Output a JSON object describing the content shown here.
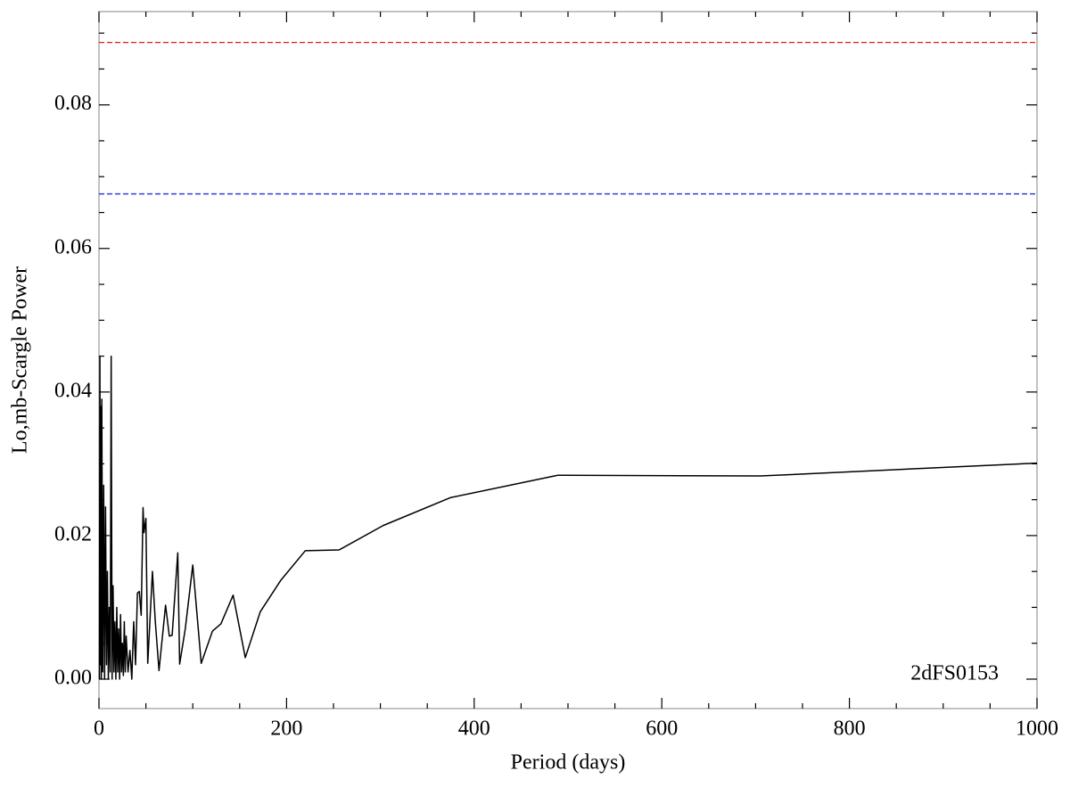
{
  "chart_data": {
    "type": "line",
    "x_label": "Period (days)",
    "y_label": "Lo,mb-Scargle Power",
    "annotation": "2dFS0153",
    "xlim": [
      0,
      1000
    ],
    "ylim": [
      -0.0041,
      0.093
    ],
    "xticks": [
      0,
      200,
      400,
      600,
      800,
      1000
    ],
    "x_minor_ticks": [
      50,
      100,
      150,
      250,
      300,
      350,
      450,
      500,
      550,
      650,
      700,
      750,
      850,
      900,
      950
    ],
    "yticks": [
      {
        "value": 0,
        "label": "0.00"
      },
      0.02,
      0.04,
      0.06,
      0.08
    ],
    "y_minor_ticks": [
      0.005,
      0.01,
      0.015,
      0.025,
      0.03,
      0.035,
      0.045,
      0.05,
      0.055,
      0.065,
      0.07,
      0.075,
      0.085,
      0.09
    ],
    "hlines": [
      {
        "value": 0.0887,
        "color": "#e41a1c"
      },
      {
        "value": 0.0676,
        "color": "#1f2fd0"
      }
    ],
    "series": [
      {
        "color": "#000000",
        "x": [
          0.5,
          1,
          1.5,
          2,
          2.5,
          3,
          4,
          5,
          6,
          7,
          8,
          9,
          10,
          11,
          12,
          13,
          14,
          15,
          16,
          17,
          18,
          19,
          20,
          21,
          22,
          23,
          24,
          25,
          26,
          27,
          28,
          29,
          31,
          33,
          35,
          37,
          39,
          41,
          43,
          45,
          47,
          48,
          50,
          52,
          57,
          60,
          64,
          71,
          75,
          78,
          84,
          86,
          92,
          100,
          109,
          121,
          130,
          143,
          156,
          172,
          194,
          220,
          256,
          303,
          375,
          489,
          705,
          1000
        ],
        "values": [
          0.0,
          0.045,
          0.002,
          0.038,
          0.0,
          0.039,
          0.001,
          0.027,
          0.0,
          0.024,
          0.002,
          0.015,
          0.0,
          0.01,
          0.001,
          0.045,
          0.0,
          0.013,
          0.001,
          0.008,
          0.0,
          0.01,
          0.001,
          0.007,
          0.0,
          0.009,
          0.001,
          0.005,
          0.0005,
          0.008,
          0.001,
          0.006,
          0.001,
          0.004,
          0.0,
          0.008,
          0.002,
          0.012,
          0.0122,
          0.0089,
          0.0239,
          0.0204,
          0.0224,
          0.0022,
          0.015,
          0.0081,
          0.0012,
          0.0103,
          0.006,
          0.0061,
          0.0176,
          0.0021,
          0.007,
          0.0159,
          0.0022,
          0.0067,
          0.0077,
          0.0117,
          0.003,
          0.0094,
          0.0138,
          0.0179,
          0.018,
          0.0214,
          0.0253,
          0.0284,
          0.0283,
          0.0301
        ]
      }
    ]
  }
}
